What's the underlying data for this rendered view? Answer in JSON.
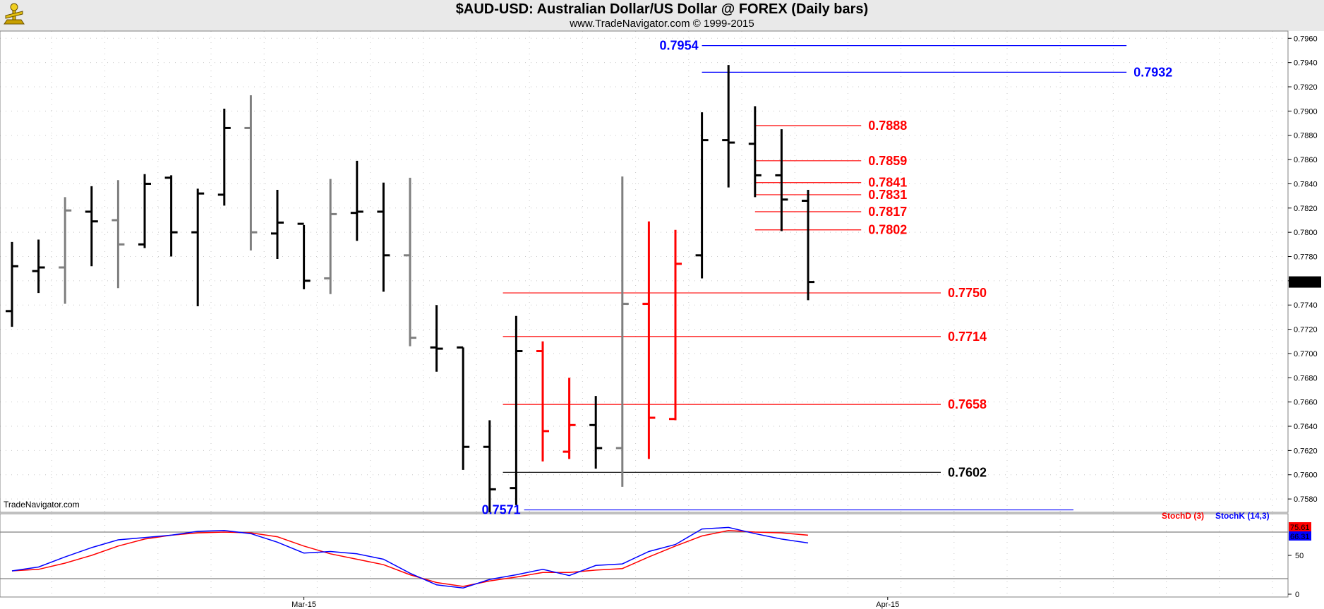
{
  "header": {
    "title": "$AUD-USD:  Australian Dollar/US Dollar @ FOREX  (Daily bars)",
    "subtitle": "www.TradeNavigator.com © 1999-2015",
    "watermark": "TradeNavigator.com"
  },
  "colors": {
    "up_bar": "#000000",
    "down_bar": "#7f7f7f",
    "highlight_bar": "#ff0000",
    "blue_level": "#0000ff",
    "red_level": "#ff0000",
    "black_level": "#000000",
    "stochD": "#ff0000",
    "stochK": "#0000ff"
  },
  "chart_data": [
    {
      "type": "ohlc",
      "name": "$AUD-USD",
      "y_ticks": [
        "0.7960",
        "0.7940",
        "0.7920",
        "0.7900",
        "0.7880",
        "0.7860",
        "0.7840",
        "0.7820",
        "0.7800",
        "0.7780",
        "0.7760",
        "0.7740",
        "0.7720",
        "0.7700",
        "0.7680",
        "0.7660",
        "0.7640",
        "0.7620",
        "0.7600",
        "0.7580"
      ],
      "ylim": [
        0.7569,
        0.7966
      ],
      "x_labels": [
        {
          "label": "Mar-15",
          "index": 11
        },
        {
          "label": "Apr-15",
          "index": 33
        }
      ],
      "last_price": "0.7759",
      "bars": [
        {
          "o": 0.7735,
          "h": 0.7792,
          "l": 0.7722,
          "c": 0.7772,
          "color": "up"
        },
        {
          "o": 0.7768,
          "h": 0.7794,
          "l": 0.775,
          "c": 0.7771,
          "color": "up"
        },
        {
          "o": 0.7771,
          "h": 0.7829,
          "l": 0.7741,
          "c": 0.7818,
          "color": "down"
        },
        {
          "o": 0.7817,
          "h": 0.7838,
          "l": 0.7772,
          "c": 0.7809,
          "color": "up"
        },
        {
          "o": 0.781,
          "h": 0.7843,
          "l": 0.7754,
          "c": 0.779,
          "color": "down"
        },
        {
          "o": 0.779,
          "h": 0.7848,
          "l": 0.7787,
          "c": 0.784,
          "color": "up"
        },
        {
          "o": 0.7845,
          "h": 0.7847,
          "l": 0.778,
          "c": 0.78,
          "color": "up"
        },
        {
          "o": 0.78,
          "h": 0.7836,
          "l": 0.7739,
          "c": 0.7832,
          "color": "up"
        },
        {
          "o": 0.7831,
          "h": 0.7902,
          "l": 0.7822,
          "c": 0.7886,
          "color": "up"
        },
        {
          "o": 0.7886,
          "h": 0.7913,
          "l": 0.7785,
          "c": 0.78,
          "color": "down"
        },
        {
          "o": 0.7799,
          "h": 0.7835,
          "l": 0.7778,
          "c": 0.7808,
          "color": "up"
        },
        {
          "o": 0.7807,
          "h": 0.7806,
          "l": 0.7753,
          "c": 0.776,
          "color": "up"
        },
        {
          "o": 0.7762,
          "h": 0.7844,
          "l": 0.7749,
          "c": 0.7815,
          "color": "down"
        },
        {
          "o": 0.7816,
          "h": 0.7859,
          "l": 0.7793,
          "c": 0.7817,
          "color": "up"
        },
        {
          "o": 0.7817,
          "h": 0.7841,
          "l": 0.7751,
          "c": 0.7781,
          "color": "up"
        },
        {
          "o": 0.7781,
          "h": 0.7845,
          "l": 0.7706,
          "c": 0.7713,
          "color": "down"
        },
        {
          "o": 0.7705,
          "h": 0.774,
          "l": 0.7685,
          "c": 0.7704,
          "color": "up"
        },
        {
          "o": 0.7705,
          "h": 0.7705,
          "l": 0.7604,
          "c": 0.7623,
          "color": "up"
        },
        {
          "o": 0.7623,
          "h": 0.7645,
          "l": 0.7569,
          "c": 0.7588,
          "color": "up"
        },
        {
          "o": 0.7589,
          "h": 0.7731,
          "l": 0.7575,
          "c": 0.7702,
          "color": "up"
        },
        {
          "o": 0.7702,
          "h": 0.771,
          "l": 0.7611,
          "c": 0.7636,
          "color": "highlight"
        },
        {
          "o": 0.7619,
          "h": 0.768,
          "l": 0.7613,
          "c": 0.7641,
          "color": "highlight"
        },
        {
          "o": 0.7641,
          "h": 0.7665,
          "l": 0.7605,
          "c": 0.7622,
          "color": "up"
        },
        {
          "o": 0.7622,
          "h": 0.7846,
          "l": 0.759,
          "c": 0.7741,
          "color": "down"
        },
        {
          "o": 0.7741,
          "h": 0.7809,
          "l": 0.7613,
          "c": 0.7647,
          "color": "highlight"
        },
        {
          "o": 0.7646,
          "h": 0.7802,
          "l": 0.7645,
          "c": 0.7774,
          "color": "highlight"
        },
        {
          "o": 0.7781,
          "h": 0.7899,
          "l": 0.7762,
          "c": 0.7876,
          "color": "up"
        },
        {
          "o": 0.7876,
          "h": 0.7938,
          "l": 0.7837,
          "c": 0.7874,
          "color": "up"
        },
        {
          "o": 0.7873,
          "h": 0.7904,
          "l": 0.7829,
          "c": 0.7847,
          "color": "up"
        },
        {
          "o": 0.7847,
          "h": 0.7885,
          "l": 0.7801,
          "c": 0.7827,
          "color": "up"
        },
        {
          "o": 0.7826,
          "h": 0.7835,
          "l": 0.7744,
          "c": 0.7759,
          "color": "up"
        }
      ],
      "levels": [
        {
          "label": "0.7954",
          "value": 0.7954,
          "color": "blue",
          "from": 26,
          "to": 42,
          "label_side": "left"
        },
        {
          "label": "0.7932",
          "value": 0.7932,
          "color": "blue",
          "from": 26,
          "to": 42,
          "label_side": "right"
        },
        {
          "label": "0.7888",
          "value": 0.7888,
          "color": "red",
          "from": 28,
          "to": 32,
          "label_side": "right"
        },
        {
          "label": "0.7859",
          "value": 0.7859,
          "color": "red",
          "from": 28,
          "to": 32,
          "label_side": "right"
        },
        {
          "label": "0.7841",
          "value": 0.7841,
          "color": "red",
          "from": 28,
          "to": 32,
          "label_side": "right"
        },
        {
          "label": "0.7831",
          "value": 0.7831,
          "color": "red",
          "from": 28,
          "to": 32,
          "label_side": "right"
        },
        {
          "label": "0.7817",
          "value": 0.7817,
          "color": "red",
          "from": 28,
          "to": 32,
          "label_side": "right"
        },
        {
          "label": "0.7802",
          "value": 0.7802,
          "color": "red",
          "from": 28,
          "to": 32,
          "label_side": "right"
        },
        {
          "label": "0.7750",
          "value": 0.775,
          "color": "red",
          "from": 18.5,
          "to": 35,
          "label_side": "right"
        },
        {
          "label": "0.7714",
          "value": 0.7714,
          "color": "red",
          "from": 18.5,
          "to": 35,
          "label_side": "right"
        },
        {
          "label": "0.7658",
          "value": 0.7658,
          "color": "red",
          "from": 18.5,
          "to": 35,
          "label_side": "right"
        },
        {
          "label": "0.7602",
          "value": 0.7602,
          "color": "black",
          "from": 18.5,
          "to": 35,
          "label_side": "right"
        },
        {
          "label": "0.7571",
          "value": 0.7571,
          "color": "blue",
          "from": 19.3,
          "to": 40,
          "label_side": "left"
        }
      ]
    },
    {
      "type": "line",
      "name": "Stochastic",
      "ylim": [
        0,
        100
      ],
      "y_ticks": [
        "50",
        "0"
      ],
      "ref_lines": [
        80,
        20
      ],
      "legend": [
        "StochD (3)",
        "StochK (14,3)"
      ],
      "last_values": {
        "stochD": "75.61",
        "stochK": "66.31"
      },
      "series": [
        {
          "name": "StochD (3)",
          "key": "stochD",
          "values": [
            30,
            32,
            40,
            50,
            62,
            71,
            76,
            79,
            80,
            79,
            74,
            62,
            52,
            45,
            38,
            25,
            15,
            10,
            17,
            22,
            28,
            28,
            31,
            33,
            48,
            62,
            75,
            82,
            80,
            79,
            76
          ]
        },
        {
          "name": "StochK (14,3)",
          "key": "stochK",
          "values": [
            30,
            35,
            48,
            60,
            70,
            73,
            76,
            81,
            82,
            78,
            67,
            53,
            55,
            52,
            45,
            27,
            12,
            8,
            19,
            25,
            32,
            24,
            37,
            39,
            55,
            64,
            84,
            86,
            78,
            71,
            66
          ]
        }
      ]
    }
  ]
}
